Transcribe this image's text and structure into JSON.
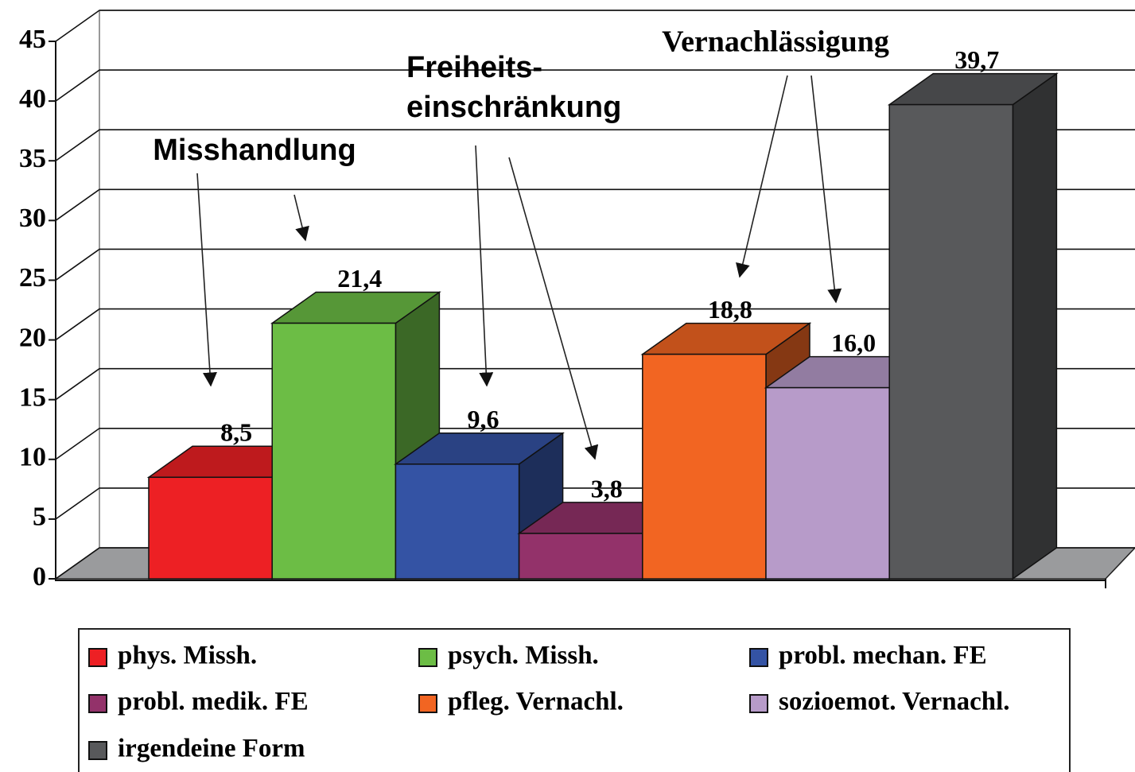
{
  "chart_data": {
    "type": "bar3d",
    "ylim": [
      0,
      45
    ],
    "yticks": [
      0,
      5,
      10,
      15,
      20,
      25,
      30,
      35,
      40,
      45
    ],
    "grid": true,
    "annotations": [
      "Misshandlung",
      "Freiheits-",
      "einschränkung",
      "Vernachlässigung"
    ],
    "series": [
      {
        "name": "phys. Missh.",
        "color": "#ed2024",
        "values": [
          8.5
        ],
        "value_labels": [
          "8,5"
        ]
      },
      {
        "name": "psych. Missh.",
        "color": "#6cbd45",
        "values": [
          21.4
        ],
        "value_labels": [
          "21,4"
        ]
      },
      {
        "name": "probl. mechan. FE",
        "color": "#3453a4",
        "values": [
          9.6
        ],
        "value_labels": [
          "9,6"
        ]
      },
      {
        "name": "probl. medik. FE",
        "color": "#93326a",
        "values": [
          3.8
        ],
        "value_labels": [
          "3,8"
        ]
      },
      {
        "name": "pfleg. Vernachl.",
        "color": "#f26522",
        "values": [
          18.8
        ],
        "value_labels": [
          "18,8"
        ]
      },
      {
        "name": "sozioemot. Vernachl.",
        "color": "#b79bc9",
        "values": [
          16.0
        ],
        "value_labels": [
          "16,0"
        ]
      },
      {
        "name": "irgendeine Form",
        "color": "#58595b",
        "values": [
          39.7
        ],
        "value_labels": [
          "39,7"
        ]
      }
    ]
  }
}
